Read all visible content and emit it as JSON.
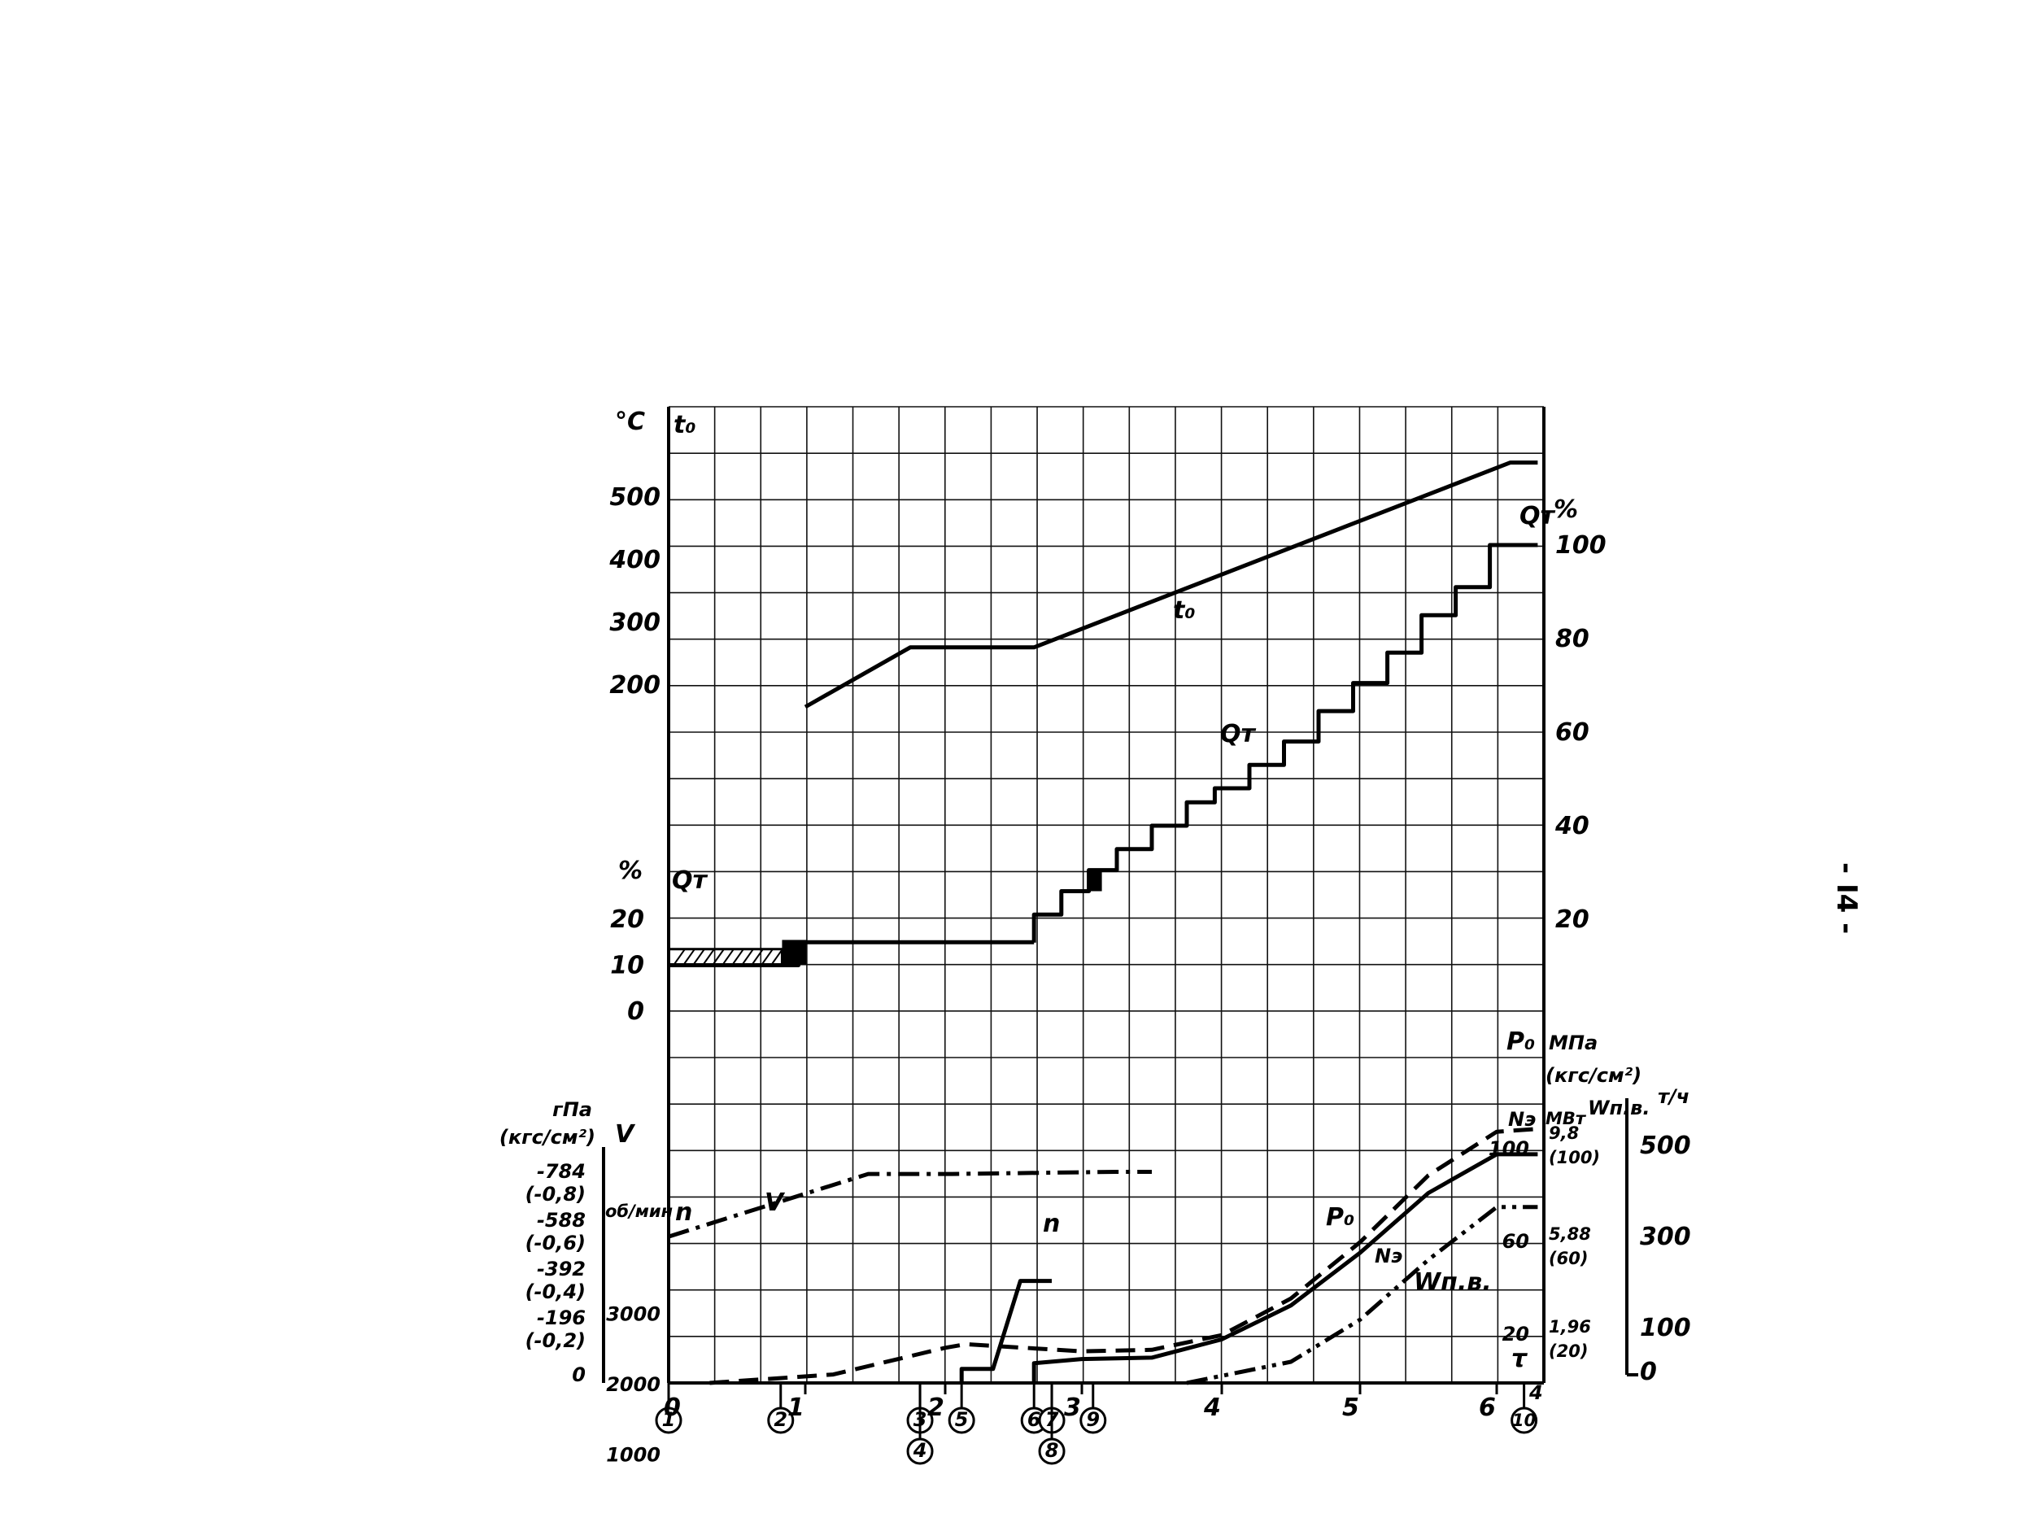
{
  "page_number": "- I4 -",
  "chart_data": {
    "type": "line",
    "x_ticks": [
      "0",
      "1",
      "2",
      "3",
      "4",
      "5",
      "6"
    ],
    "x_end_label": "4",
    "events": [
      {
        "label": "1",
        "x": 0.0
      },
      {
        "label": "2",
        "x": 0.82
      },
      {
        "label": "3",
        "x": 1.82
      },
      {
        "label": "4",
        "x": 1.82
      },
      {
        "label": "5",
        "x": 2.12
      },
      {
        "label": "6",
        "x": 2.65
      },
      {
        "label": "7",
        "x": 2.78
      },
      {
        "label": "8",
        "x": 2.78
      },
      {
        "label": "9",
        "x": 3.08
      },
      {
        "label": "10",
        "x": 6.2
      }
    ],
    "top_panel": {
      "left_axis": {
        "unit": "°C",
        "name": "t₀",
        "ticks": [
          "500",
          "400",
          "300",
          "200"
        ]
      },
      "right_axis": {
        "name": "Qт",
        "unit": "%",
        "ticks": [
          "100",
          "80",
          "60",
          "40",
          "20"
        ]
      },
      "series": [
        {
          "name": "t₀",
          "style": "solid",
          "points": [
            [
              1.0,
              165
            ],
            [
              1.75,
              260
            ],
            [
              2.65,
              260
            ],
            [
              6.1,
              555
            ],
            [
              6.3,
              555
            ]
          ]
        },
        {
          "name": "Qт",
          "style": "solid-step",
          "points": [
            [
              2.65,
              15
            ],
            [
              2.65,
              21
            ],
            [
              2.85,
              21
            ],
            [
              2.85,
              26
            ],
            [
              3.05,
              26
            ],
            [
              3.05,
              30.5
            ],
            [
              3.25,
              30.5
            ],
            [
              3.25,
              35
            ],
            [
              3.5,
              35
            ],
            [
              3.5,
              40
            ],
            [
              3.75,
              40
            ],
            [
              3.75,
              45
            ],
            [
              3.95,
              45
            ],
            [
              3.95,
              48
            ],
            [
              4.2,
              48
            ],
            [
              4.2,
              53
            ],
            [
              4.45,
              53
            ],
            [
              4.45,
              58
            ],
            [
              4.7,
              58
            ],
            [
              4.7,
              64.5
            ],
            [
              4.95,
              64.5
            ],
            [
              4.95,
              70.5
            ],
            [
              5.2,
              70.5
            ],
            [
              5.2,
              77
            ],
            [
              5.45,
              77
            ],
            [
              5.45,
              85
            ],
            [
              5.7,
              85
            ],
            [
              5.7,
              91
            ],
            [
              5.95,
              91
            ],
            [
              5.95,
              100
            ],
            [
              6.3,
              100
            ]
          ]
        }
      ],
      "labels": {
        "t0": "t₀",
        "qt": "Qт"
      }
    },
    "mid_panel": {
      "left_axis": {
        "name": "Qт",
        "unit": "%",
        "ticks": [
          "20",
          "10",
          "0"
        ]
      },
      "series": [
        {
          "name": "Qт",
          "style": "solid",
          "points": [
            [
              0.0,
              10
            ],
            [
              0.95,
              10
            ],
            [
              0.95,
              15
            ],
            [
              2.65,
              15
            ]
          ]
        }
      ]
    },
    "bottom_panel": {
      "left_axes": [
        {
          "unit": "гПа",
          "unit2": "(кгс/см²)",
          "ticks": [
            "-784",
            "(-0,8)",
            "-588",
            "(-0,6)",
            "-392",
            "(-0,4)",
            "-196",
            "(-0,2)",
            "0"
          ]
        },
        {
          "name": "V",
          "unit": "об/мин",
          "ticks": [
            "3000",
            "2000",
            "1000"
          ]
        }
      ],
      "right_axes": [
        {
          "name": "P₀",
          "unit": "МПа",
          "unit2": "(кгс/см²)",
          "ticks": [
            "9,8",
            "(100)",
            "5,88",
            "(60)",
            "1,96",
            "(20)"
          ]
        },
        {
          "name": "Nэ",
          "unit": "МВт",
          "ticks": [
            "100",
            "60",
            "20"
          ]
        },
        {
          "name": "Wп.в.",
          "unit": "т/ч",
          "ticks": [
            "500",
            "300",
            "100",
            "0"
          ]
        }
      ],
      "series": [
        {
          "name": "V",
          "style": "dash-dot",
          "points": [
            [
              0.0,
              2080
            ],
            [
              1.45,
              2970
            ],
            [
              2.05,
              2970
            ],
            [
              3.25,
              3000
            ],
            [
              3.5,
              3000
            ]
          ]
        },
        {
          "name": "P₀",
          "style": "dash",
          "points": [
            [
              0.3,
              0
            ],
            [
              1.2,
              120
            ],
            [
              2.0,
              500
            ],
            [
              2.15,
              550
            ],
            [
              3.0,
              450
            ],
            [
              3.5,
              470
            ],
            [
              4.0,
              680
            ],
            [
              4.5,
              1200
            ],
            [
              5.0,
              2000
            ],
            [
              5.5,
              2950
            ],
            [
              6.0,
              3570
            ],
            [
              6.3,
              3610
            ]
          ]
        },
        {
          "name": "n",
          "style": "solid",
          "points": [
            [
              2.12,
              0
            ],
            [
              2.12,
              200
            ],
            [
              2.35,
              200
            ],
            [
              2.55,
              1450
            ],
            [
              2.65,
              1450
            ],
            [
              2.78,
              1450
            ]
          ]
        },
        {
          "name": "Nэ",
          "style": "solid",
          "points": [
            [
              2.65,
              0
            ],
            [
              2.65,
              280
            ],
            [
              3.0,
              340
            ],
            [
              3.5,
              360
            ],
            [
              4.0,
              620
            ],
            [
              4.5,
              1100
            ],
            [
              5.0,
              1850
            ],
            [
              5.5,
              2700
            ],
            [
              6.0,
              3250
            ],
            [
              6.3,
              3250
            ]
          ]
        },
        {
          "name": "Wп.в.",
          "style": "dash-dot-dot",
          "points": [
            [
              3.75,
              0
            ],
            [
              4.5,
              300
            ],
            [
              5.0,
              900
            ],
            [
              5.5,
              1750
            ],
            [
              6.0,
              2500
            ],
            [
              6.3,
              2500
            ]
          ]
        }
      ],
      "labels": {
        "v": "V",
        "n": "n",
        "p0": "P₀",
        "ne": "Nэ",
        "wpv": "Wп.в.",
        "tau": "τ"
      }
    }
  }
}
